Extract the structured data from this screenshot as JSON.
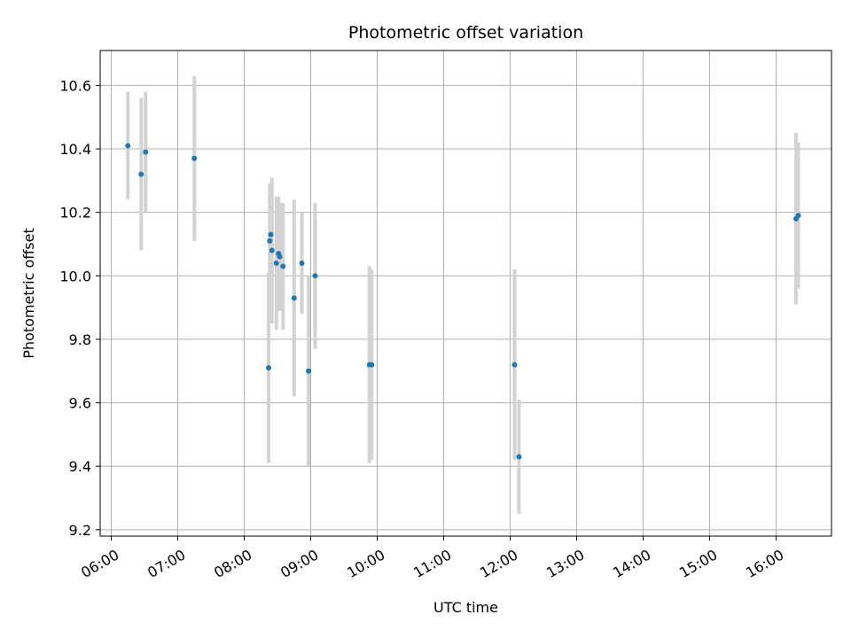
{
  "chart_data": {
    "type": "scatter",
    "title": "Photometric offset variation",
    "xlabel": "UTC time",
    "ylabel": "Photometric offset",
    "x_unit": "UTC time (HH:MM)",
    "xlim": [
      "05:50",
      "16:50"
    ],
    "ylim": [
      9.18,
      10.71
    ],
    "xticks": [
      "06:00",
      "07:00",
      "08:00",
      "09:00",
      "10:00",
      "11:00",
      "12:00",
      "13:00",
      "14:00",
      "15:00",
      "16:00"
    ],
    "yticks": [
      9.2,
      9.4,
      9.6,
      9.8,
      10.0,
      10.2,
      10.4,
      10.6
    ],
    "ytick_labels": [
      "9.2",
      "9.4",
      "9.6",
      "9.8",
      "10.0",
      "10.2",
      "10.4",
      "10.6"
    ],
    "grid": true,
    "colors": {
      "points": "#1f77b4",
      "errorbars": "#d3d3d3",
      "grid": "#b0b0b0"
    },
    "points": [
      {
        "x": "06:15",
        "y": 10.41,
        "yerr": 0.17
      },
      {
        "x": "06:27",
        "y": 10.32,
        "yerr": 0.24
      },
      {
        "x": "06:31",
        "y": 10.39,
        "yerr": 0.19
      },
      {
        "x": "07:15",
        "y": 10.37,
        "yerr": 0.26
      },
      {
        "x": "08:22",
        "y": 9.71,
        "yerr": 0.3
      },
      {
        "x": "08:23",
        "y": 10.11,
        "yerr": 0.18
      },
      {
        "x": "08:24",
        "y": 10.13,
        "yerr": 0.16
      },
      {
        "x": "08:25",
        "y": 10.08,
        "yerr": 0.23
      },
      {
        "x": "08:29",
        "y": 10.04,
        "yerr": 0.21
      },
      {
        "x": "08:31",
        "y": 10.07,
        "yerr": 0.18
      },
      {
        "x": "08:32",
        "y": 10.06,
        "yerr": 0.17
      },
      {
        "x": "08:35",
        "y": 10.03,
        "yerr": 0.2
      },
      {
        "x": "08:45",
        "y": 9.93,
        "yerr": 0.31
      },
      {
        "x": "08:52",
        "y": 10.04,
        "yerr": 0.16
      },
      {
        "x": "08:58",
        "y": 9.7,
        "yerr": 0.3
      },
      {
        "x": "09:04",
        "y": 10.0,
        "yerr": 0.23
      },
      {
        "x": "09:53",
        "y": 9.72,
        "yerr": 0.31
      },
      {
        "x": "09:55",
        "y": 9.72,
        "yerr": 0.3
      },
      {
        "x": "12:04",
        "y": 9.72,
        "yerr": 0.3
      },
      {
        "x": "12:08",
        "y": 9.43,
        "yerr": 0.18
      },
      {
        "x": "16:18",
        "y": 10.18,
        "yerr": 0.27
      },
      {
        "x": "16:20",
        "y": 10.19,
        "yerr": 0.23
      }
    ]
  }
}
